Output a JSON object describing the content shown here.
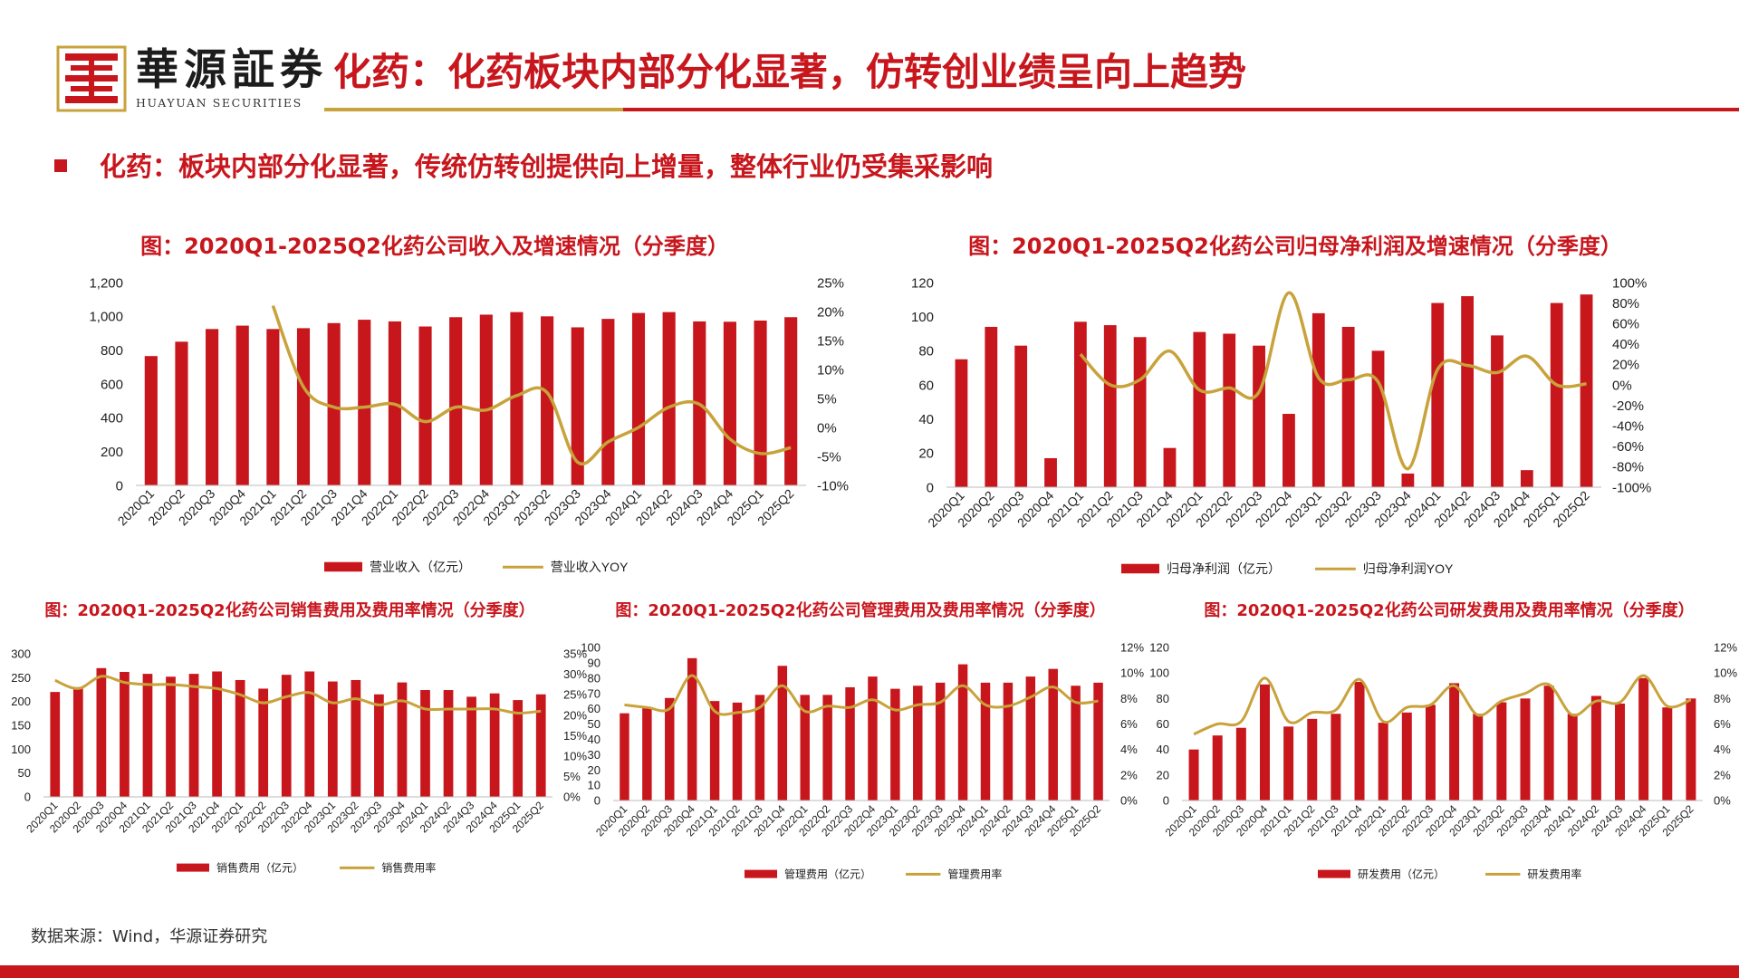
{
  "header": {
    "brand_cn": "華源証券",
    "brand_en": "HUAYUAN SECURITIES",
    "title": "化药：化药板块内部分化显著，仿转创业绩呈向上趋势",
    "subtitle": "化药：板块内部分化显著，传统仿转创提供向上增量，整体行业仍受集采影响"
  },
  "footer": {
    "source": "数据来源：Wind，华源证券研究"
  },
  "colors": {
    "bar": "#c8161d",
    "line": "#c8a23b",
    "accent": "#c8161d"
  },
  "chart_data": [
    {
      "type": "bar",
      "title": "图：2020Q1-2025Q2化药公司收入及增速情况（分季度）",
      "categories": [
        "2020Q1",
        "2020Q2",
        "2020Q3",
        "2020Q4",
        "2021Q1",
        "2021Q2",
        "2021Q3",
        "2021Q4",
        "2022Q1",
        "2022Q2",
        "2022Q3",
        "2022Q4",
        "2023Q1",
        "2023Q2",
        "2023Q3",
        "2023Q4",
        "2024Q1",
        "2024Q2",
        "2024Q3",
        "2024Q4",
        "2025Q1",
        "2025Q2"
      ],
      "series": [
        {
          "name": "营业收入（亿元）",
          "kind": "bar",
          "axis": "left",
          "values": [
            765,
            850,
            925,
            945,
            925,
            930,
            960,
            980,
            970,
            940,
            995,
            1010,
            1025,
            1000,
            935,
            985,
            1020,
            1025,
            970,
            968,
            975,
            995
          ]
        },
        {
          "name": "营业收入YOY",
          "kind": "line",
          "axis": "right",
          "unit": "%",
          "values": [
            null,
            null,
            null,
            null,
            21,
            7,
            3.5,
            3.5,
            4,
            1,
            3.5,
            3,
            5.5,
            6,
            -6,
            -2.5,
            0,
            3.5,
            4,
            -2,
            -4.5,
            -3.5
          ]
        }
      ],
      "ylim": [
        0,
        1200
      ],
      "yticks": [
        0,
        200,
        400,
        600,
        800,
        1000,
        1200
      ],
      "ytick_labels": [
        "0",
        "200",
        "400",
        "600",
        "800",
        "1,000",
        "1,200"
      ],
      "y2lim": [
        -10,
        25
      ],
      "y2ticks": [
        -10,
        -5,
        0,
        5,
        10,
        15,
        20,
        25
      ],
      "y2tick_labels": [
        "-10%",
        "-5%",
        "0%",
        "5%",
        "10%",
        "15%",
        "20%",
        "25%"
      ]
    },
    {
      "type": "bar",
      "title": "图：2020Q1-2025Q2化药公司归母净利润及增速情况（分季度）",
      "categories": [
        "2020Q1",
        "2020Q2",
        "2020Q3",
        "2020Q4",
        "2021Q1",
        "2021Q2",
        "2021Q3",
        "2021Q4",
        "2022Q1",
        "2022Q2",
        "2022Q3",
        "2022Q4",
        "2023Q1",
        "2023Q2",
        "2023Q3",
        "2023Q4",
        "2024Q1",
        "2024Q2",
        "2024Q3",
        "2024Q4",
        "2025Q1",
        "2025Q2"
      ],
      "series": [
        {
          "name": "归母净利润（亿元）",
          "kind": "bar",
          "axis": "left",
          "values": [
            75,
            94,
            83,
            17,
            97,
            95,
            88,
            23,
            91,
            90,
            83,
            43,
            102,
            94,
            80,
            8,
            108,
            112,
            89,
            10,
            108,
            113
          ]
        },
        {
          "name": "归母净利润YOY",
          "kind": "line",
          "axis": "right",
          "unit": "%",
          "values": [
            null,
            null,
            null,
            null,
            30,
            0,
            5,
            33,
            -5,
            -3,
            -7,
            90,
            7,
            5,
            3,
            -82,
            15,
            19,
            12,
            28,
            0,
            1
          ]
        }
      ],
      "ylim": [
        0,
        120
      ],
      "yticks": [
        0,
        20,
        40,
        60,
        80,
        100,
        120
      ],
      "ytick_labels": [
        "0",
        "20",
        "40",
        "60",
        "80",
        "100",
        "120"
      ],
      "y2lim": [
        -100,
        100
      ],
      "y2ticks": [
        -100,
        -80,
        -60,
        -40,
        -20,
        0,
        20,
        40,
        60,
        80,
        100
      ],
      "y2tick_labels": [
        "-100%",
        "-80%",
        "-60%",
        "-40%",
        "-20%",
        "0%",
        "20%",
        "40%",
        "60%",
        "80%",
        "100%"
      ]
    },
    {
      "type": "bar",
      "title": "图：2020Q1-2025Q2化药公司销售费用及费用率情况（分季度）",
      "categories": [
        "2020Q1",
        "2020Q2",
        "2020Q3",
        "2020Q4",
        "2021Q1",
        "2021Q2",
        "2021Q3",
        "2021Q4",
        "2022Q1",
        "2022Q2",
        "2022Q3",
        "2022Q4",
        "2023Q1",
        "2023Q2",
        "2023Q3",
        "2023Q4",
        "2024Q1",
        "2024Q2",
        "2024Q3",
        "2024Q4",
        "2025Q1",
        "2025Q2"
      ],
      "series": [
        {
          "name": "销售费用（亿元）",
          "kind": "bar",
          "axis": "left",
          "values": [
            220,
            230,
            270,
            262,
            258,
            252,
            258,
            263,
            245,
            227,
            256,
            263,
            242,
            245,
            215,
            240,
            224,
            224,
            210,
            217,
            203,
            215
          ]
        },
        {
          "name": "销售费用率",
          "kind": "line",
          "axis": "right",
          "unit": "%",
          "values": [
            28.5,
            26.5,
            29.5,
            28,
            27.5,
            27.5,
            27,
            26.5,
            25,
            23,
            24.5,
            25.5,
            23,
            24,
            22.5,
            23.5,
            21.5,
            21.5,
            21.5,
            21.5,
            20.5,
            21
          ]
        }
      ],
      "ylim": [
        0,
        300
      ],
      "yticks": [
        0,
        50,
        100,
        150,
        200,
        250,
        300
      ],
      "ytick_labels": [
        "0",
        "50",
        "100",
        "150",
        "200",
        "250",
        "300"
      ],
      "y2lim": [
        0,
        35
      ],
      "y2ticks": [
        0,
        5,
        10,
        15,
        20,
        25,
        30,
        35
      ],
      "y2tick_labels": [
        "0%",
        "5%",
        "10%",
        "15%",
        "20%",
        "25%",
        "30%",
        "35%"
      ]
    },
    {
      "type": "bar",
      "title": "图：2020Q1-2025Q2化药公司管理费用及费用率情况（分季度）",
      "categories": [
        "2020Q1",
        "2020Q2",
        "2020Q3",
        "2020Q4",
        "2021Q1",
        "2021Q2",
        "2021Q3",
        "2021Q4",
        "2022Q1",
        "2022Q2",
        "2022Q3",
        "2022Q4",
        "2023Q1",
        "2023Q2",
        "2023Q3",
        "2023Q4",
        "2024Q1",
        "2024Q2",
        "2024Q3",
        "2024Q4",
        "2025Q1",
        "2025Q2"
      ],
      "series": [
        {
          "name": "管理费用（亿元）",
          "kind": "bar",
          "axis": "left",
          "values": [
            57,
            61,
            67,
            93,
            65,
            64,
            69,
            88,
            69,
            69,
            74,
            81,
            73,
            75,
            77,
            89,
            77,
            77,
            81,
            86,
            75,
            77
          ]
        },
        {
          "name": "管理费用率",
          "kind": "line",
          "axis": "right",
          "unit": "%",
          "values": [
            7.5,
            7.3,
            7.2,
            9.8,
            7,
            6.9,
            7.3,
            9,
            7,
            7.4,
            7.3,
            7.9,
            7.1,
            7.5,
            7.7,
            9,
            7.5,
            7.4,
            8.1,
            8.9,
            7.7,
            7.8
          ]
        }
      ],
      "ylim": [
        0,
        100
      ],
      "yticks": [
        0,
        10,
        20,
        30,
        40,
        50,
        60,
        70,
        80,
        90,
        100
      ],
      "ytick_labels": [
        "0",
        "10",
        "20",
        "30",
        "40",
        "50",
        "60",
        "70",
        "80",
        "90",
        "100"
      ],
      "y2lim": [
        0,
        12
      ],
      "y2ticks": [
        0,
        2,
        4,
        6,
        8,
        10,
        12
      ],
      "y2tick_labels": [
        "0%",
        "2%",
        "4%",
        "6%",
        "8%",
        "10%",
        "12%"
      ]
    },
    {
      "type": "bar",
      "title": "图：2020Q1-2025Q2化药公司研发费用及费用率情况（分季度）",
      "categories": [
        "2020Q1",
        "2020Q2",
        "2020Q3",
        "2020Q4",
        "2021Q1",
        "2021Q2",
        "2021Q3",
        "2021Q4",
        "2022Q1",
        "2022Q2",
        "2022Q3",
        "2022Q4",
        "2023Q1",
        "2023Q2",
        "2023Q3",
        "2023Q4",
        "2024Q1",
        "2024Q2",
        "2024Q3",
        "2024Q4",
        "2025Q1",
        "2025Q2"
      ],
      "series": [
        {
          "name": "研发费用（亿元）",
          "kind": "bar",
          "axis": "left",
          "values": [
            40,
            51,
            57,
            91,
            58,
            64,
            68,
            93,
            61,
            69,
            75,
            92,
            68,
            77,
            80,
            90,
            68,
            82,
            76,
            96,
            73,
            80
          ]
        },
        {
          "name": "研发费用率",
          "kind": "line",
          "axis": "right",
          "unit": "%",
          "values": [
            5.2,
            6,
            6.2,
            9.6,
            6.2,
            6.9,
            7.1,
            9.5,
            6.2,
            7.3,
            7.5,
            9,
            6.7,
            7.8,
            8.4,
            9.1,
            6.7,
            7.8,
            7.7,
            9.8,
            7.4,
            7.9
          ]
        }
      ],
      "ylim": [
        0,
        120
      ],
      "yticks": [
        0,
        20,
        40,
        60,
        80,
        100,
        120
      ],
      "ytick_labels": [
        "0",
        "20",
        "40",
        "60",
        "80",
        "100",
        "120"
      ],
      "y2lim": [
        0,
        12
      ],
      "y2ticks": [
        0,
        2,
        4,
        6,
        8,
        10,
        12
      ],
      "y2tick_labels": [
        "0%",
        "2%",
        "4%",
        "6%",
        "8%",
        "10%",
        "12%"
      ]
    }
  ]
}
